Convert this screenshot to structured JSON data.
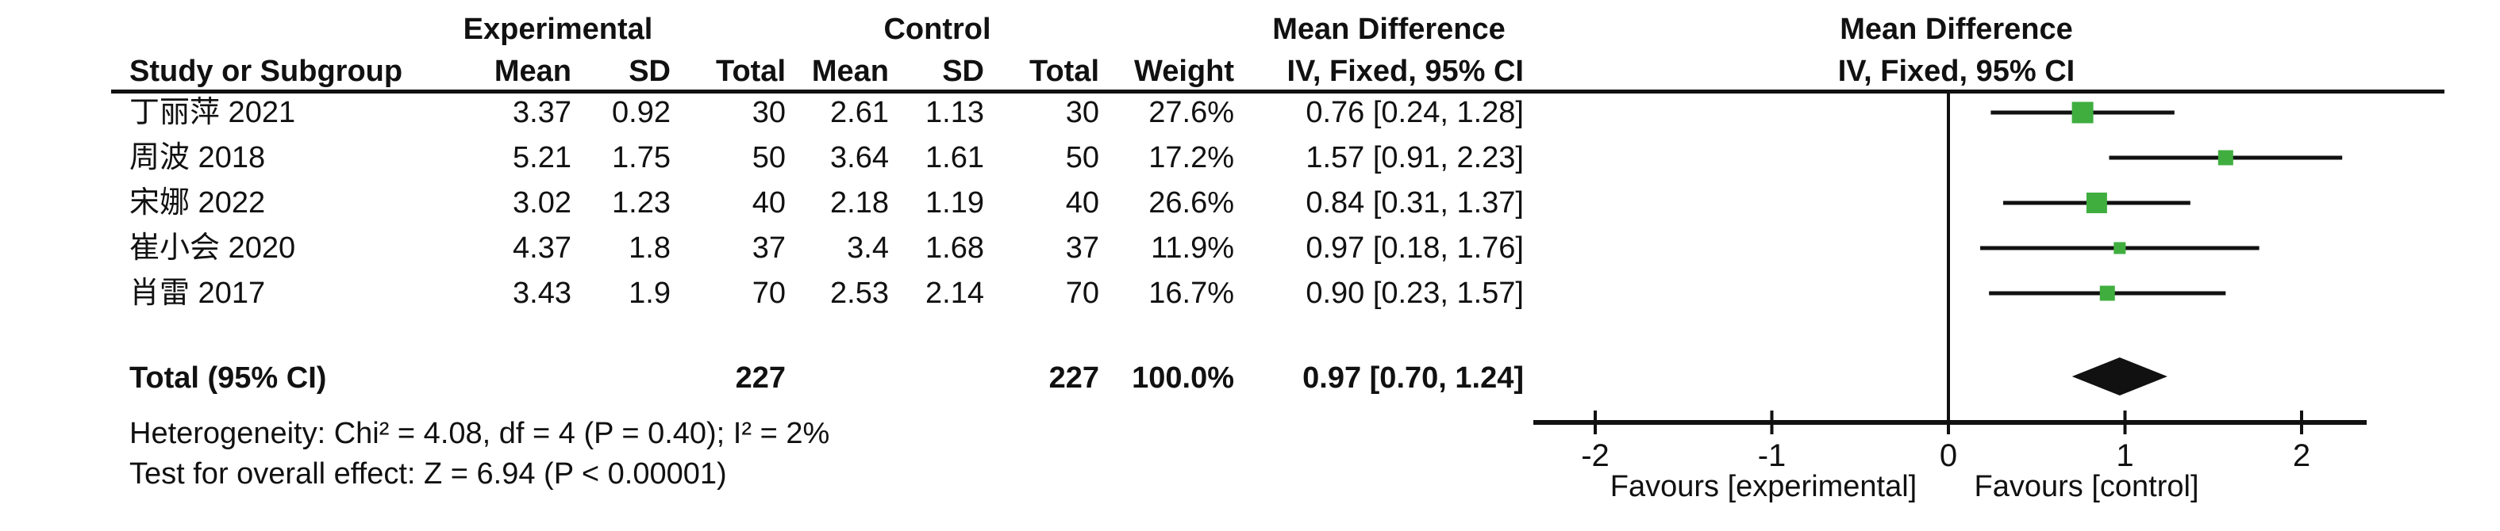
{
  "headers": {
    "study": "Study or Subgroup",
    "group_experimental": "Experimental",
    "group_control": "Control",
    "md_left_line1": "Mean Difference",
    "md_left_line2": "IV, Fixed, 95% CI",
    "md_right_line1": "Mean Difference",
    "md_right_line2": "IV, Fixed, 95% CI",
    "columns": [
      "Mean",
      "SD",
      "Total",
      "Mean",
      "SD",
      "Total",
      "Weight",
      "IV, Fixed, 95% CI"
    ]
  },
  "studies": [
    {
      "name": "丁丽萍 2021",
      "exp_mean": "3.37",
      "exp_sd": "0.92",
      "exp_total": "30",
      "ctrl_mean": "2.61",
      "ctrl_sd": "1.13",
      "ctrl_total": "30",
      "weight": "27.6%",
      "ci_text": "0.76 [0.24, 1.28]"
    },
    {
      "name": "周波 2018",
      "exp_mean": "5.21",
      "exp_sd": "1.75",
      "exp_total": "50",
      "ctrl_mean": "3.64",
      "ctrl_sd": "1.61",
      "ctrl_total": "50",
      "weight": "17.2%",
      "ci_text": "1.57 [0.91, 2.23]"
    },
    {
      "name": "宋娜 2022",
      "exp_mean": "3.02",
      "exp_sd": "1.23",
      "exp_total": "40",
      "ctrl_mean": "2.18",
      "ctrl_sd": "1.19",
      "ctrl_total": "40",
      "weight": "26.6%",
      "ci_text": "0.84 [0.31, 1.37]"
    },
    {
      "name": "崔小会 2020",
      "exp_mean": "4.37",
      "exp_sd": "1.8",
      "exp_total": "37",
      "ctrl_mean": "3.4",
      "ctrl_sd": "1.68",
      "ctrl_total": "37",
      "weight": "11.9%",
      "ci_text": "0.97 [0.18, 1.76]"
    },
    {
      "name": "肖雷 2017",
      "exp_mean": "3.43",
      "exp_sd": "1.9",
      "exp_total": "70",
      "ctrl_mean": "2.53",
      "ctrl_sd": "2.14",
      "ctrl_total": "70",
      "weight": "16.7%",
      "ci_text": "0.90 [0.23, 1.57]"
    }
  ],
  "total": {
    "label": "Total (95% CI)",
    "exp_total": "227",
    "ctrl_total": "227",
    "weight": "100.0%",
    "ci_text": "0.97 [0.70, 1.24]"
  },
  "footnotes": {
    "heterogeneity": "Heterogeneity: Chi² = 4.08, df = 4 (P = 0.40); I² = 2%",
    "overall_effect": "Test for overall effect: Z = 6.94 (P < 0.00001)"
  },
  "colors": {
    "square": "#3FAE3F",
    "ink": "#111111",
    "background": "#FFFFFF"
  },
  "chart_data": {
    "type": "scatter",
    "subtype": "forest-plot",
    "title": "Mean Difference",
    "effect_model": "IV, Fixed, 95% CI",
    "xticks": [
      -2,
      -1,
      0,
      1,
      2
    ],
    "xtick_labels": [
      "-2",
      "-1",
      "0",
      "1",
      "2"
    ],
    "xlim": [
      -2.35,
      2.37
    ],
    "zero_line": 0,
    "xlabel_left": "Favours [experimental]",
    "xlabel_right": "Favours [control]",
    "series": [
      {
        "name": "丁丽萍 2021",
        "md": 0.76,
        "ci_low": 0.24,
        "ci_high": 1.28,
        "weight_pct": 27.6
      },
      {
        "name": "周波 2018",
        "md": 1.57,
        "ci_low": 0.91,
        "ci_high": 2.23,
        "weight_pct": 17.2
      },
      {
        "name": "宋娜 2022",
        "md": 0.84,
        "ci_low": 0.31,
        "ci_high": 1.37,
        "weight_pct": 26.6
      },
      {
        "name": "崔小会 2020",
        "md": 0.97,
        "ci_low": 0.18,
        "ci_high": 1.76,
        "weight_pct": 11.9
      },
      {
        "name": "肖雷 2017",
        "md": 0.9,
        "ci_low": 0.23,
        "ci_high": 1.57,
        "weight_pct": 16.7
      }
    ],
    "pooled": {
      "name": "Total (95% CI)",
      "md": 0.97,
      "ci_low": 0.7,
      "ci_high": 1.24,
      "weight_pct": 100.0
    }
  }
}
